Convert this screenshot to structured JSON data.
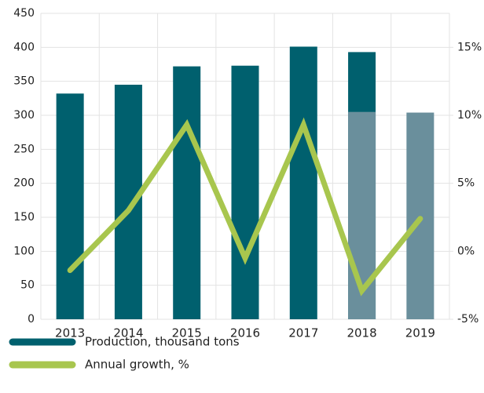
{
  "chart_data": {
    "type": "bar",
    "categories": [
      "2013",
      "2014",
      "2015",
      "2016",
      "2017",
      "2018",
      "2019"
    ],
    "series": [
      {
        "name": "Production, thousand tons",
        "color": "#00606e",
        "type": "bar",
        "values": [
          332,
          345,
          372,
          373,
          401,
          393,
          null
        ]
      },
      {
        "color": "#6a8f9c",
        "type": "bar",
        "values": [
          null,
          null,
          null,
          null,
          null,
          305,
          304
        ]
      },
      {
        "name": "Annual growth, %",
        "color": "#a8c64e",
        "type": "line",
        "axis": "y2",
        "values": [
          -1.4,
          3.0,
          9.3,
          -0.5,
          9.3,
          -2.9,
          2.4
        ]
      }
    ],
    "ylim": [
      0,
      450
    ],
    "yticks": [
      0,
      50,
      100,
      150,
      200,
      250,
      300,
      350,
      400,
      450
    ],
    "y2lim": [
      -5,
      17.5
    ],
    "y2ticks": [
      {
        "value": -5,
        "label": "-5%"
      },
      {
        "value": 0,
        "label": "0%"
      },
      {
        "value": 5,
        "label": "5%"
      },
      {
        "value": 10,
        "label": "10%"
      },
      {
        "value": 15,
        "label": "15%"
      }
    ],
    "grid": true,
    "legend": "bottom-left"
  }
}
